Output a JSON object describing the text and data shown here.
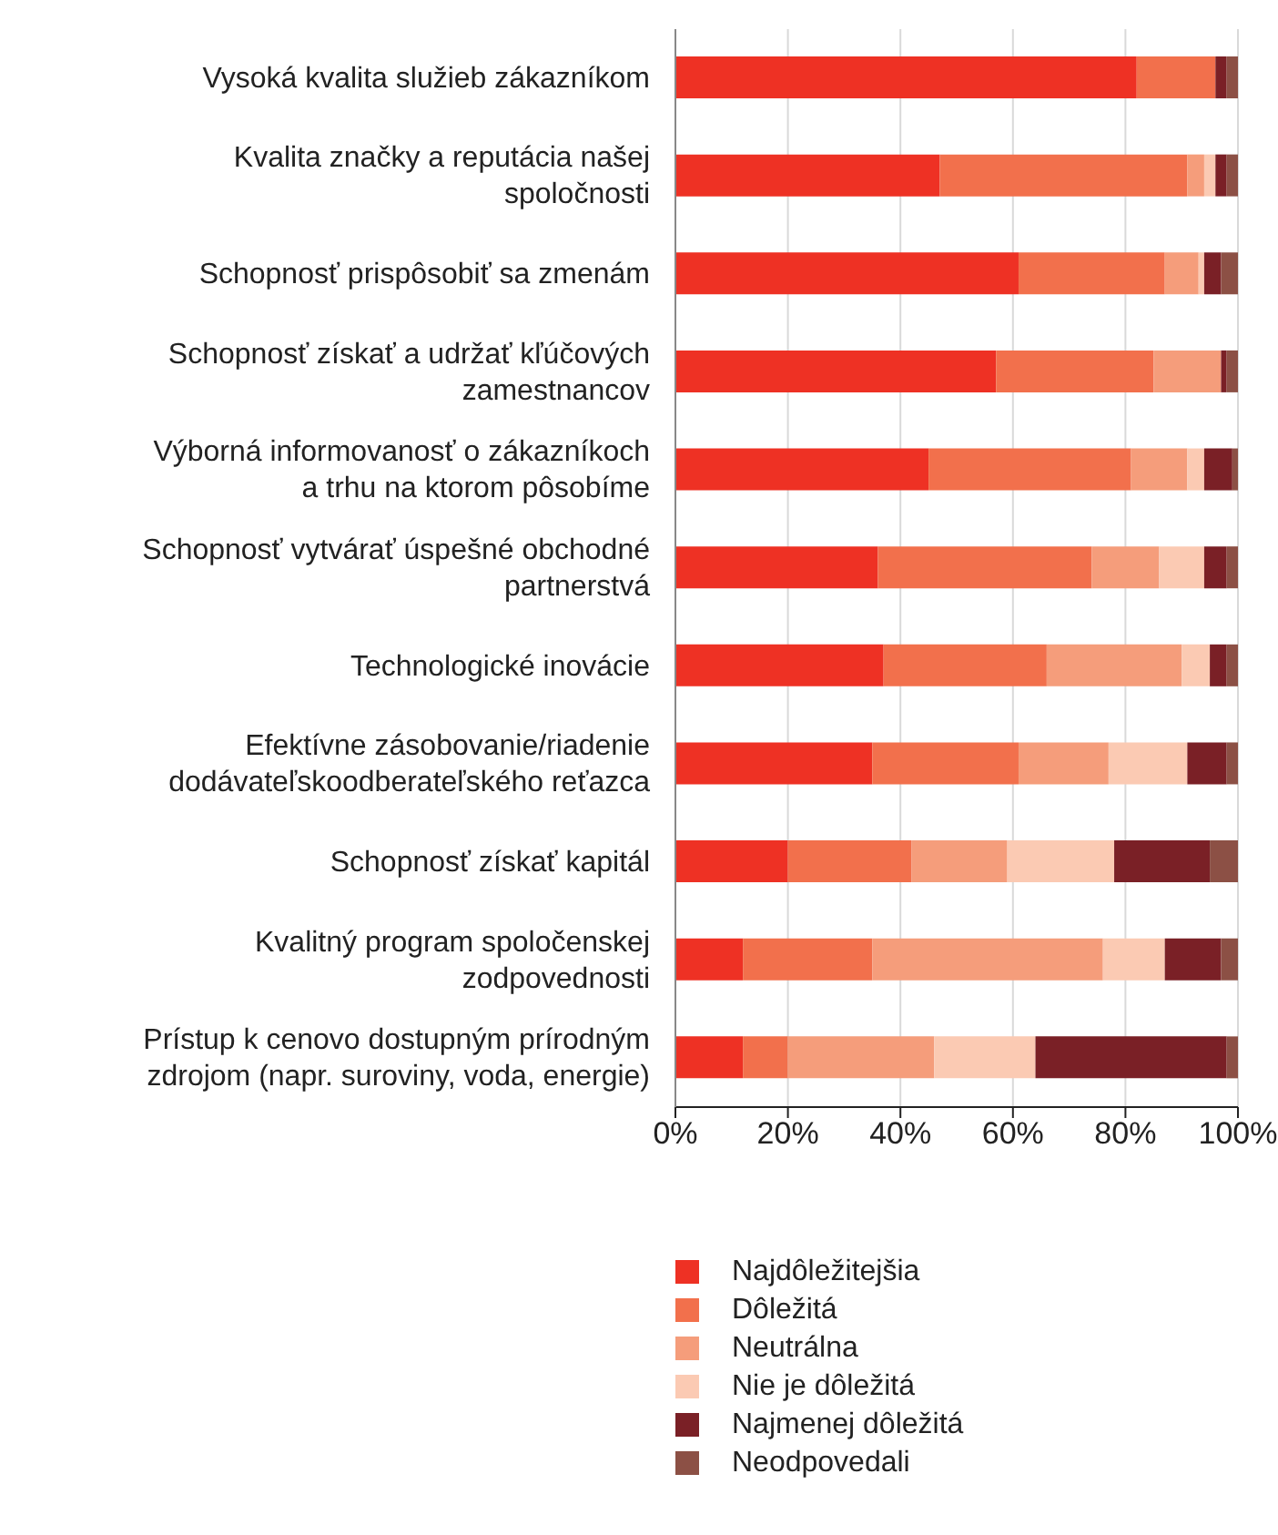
{
  "chart_data": {
    "type": "bar",
    "orientation": "horizontal",
    "stacked": true,
    "categories": [
      "Vysoká kvalita služieb zákazníkom",
      "Kvalita značky a reputácia našej spoločnosti",
      "Schopnosť prispôsobiť sa zmenám",
      "Schopnosť získať a udržať kľúčových zamestnancov",
      "Výborná informovanosť o zákazníkoch a trhu na ktorom pôsobíme",
      "Schopnosť vytvárať úspešné obchodné partnerstvá",
      "Technologické inovácie",
      "Efektívne zásobovanie/riadenie dodávateľskoodberateľského reťazca",
      "Schopnosť získať kapitál",
      "Kvalitný program spoločenskej zodpovednosti",
      "Prístup k cenovo dostupným prírodným zdrojom (napr. suroviny, voda, energie)"
    ],
    "series": [
      {
        "name": "Najdôležitejšia",
        "color": "#ee3124",
        "values": [
          82,
          47,
          61,
          57,
          45,
          36,
          37,
          35,
          20,
          12,
          12
        ]
      },
      {
        "name": "Dôležitá",
        "color": "#f2704c",
        "values": [
          14,
          44,
          26,
          28,
          36,
          38,
          29,
          26,
          22,
          23,
          8
        ]
      },
      {
        "name": "Neutrálna",
        "color": "#f59d7b",
        "values": [
          0,
          3,
          6,
          12,
          10,
          12,
          24,
          16,
          17,
          41,
          26
        ]
      },
      {
        "name": "Nie je dôležitá",
        "color": "#fbcab3",
        "values": [
          0,
          2,
          1,
          0,
          3,
          8,
          5,
          14,
          19,
          11,
          18
        ]
      },
      {
        "name": "Najmenej dôležitá",
        "color": "#7a2026",
        "values": [
          2,
          2,
          3,
          1,
          5,
          4,
          3,
          7,
          17,
          10,
          34
        ]
      },
      {
        "name": "Neodpovedali",
        "color": "#8c5045",
        "values": [
          2,
          2,
          3,
          2,
          1,
          2,
          2,
          2,
          5,
          3,
          2
        ]
      }
    ],
    "xlim": [
      0,
      100
    ],
    "xticks": [
      {
        "value": 0,
        "label": "0%"
      },
      {
        "value": 20,
        "label": "20%"
      },
      {
        "value": 40,
        "label": "40%"
      },
      {
        "value": 60,
        "label": "60%"
      },
      {
        "value": 80,
        "label": "80%"
      },
      {
        "value": 100,
        "label": "100%"
      }
    ],
    "grid": "x",
    "legend": "bottom"
  }
}
